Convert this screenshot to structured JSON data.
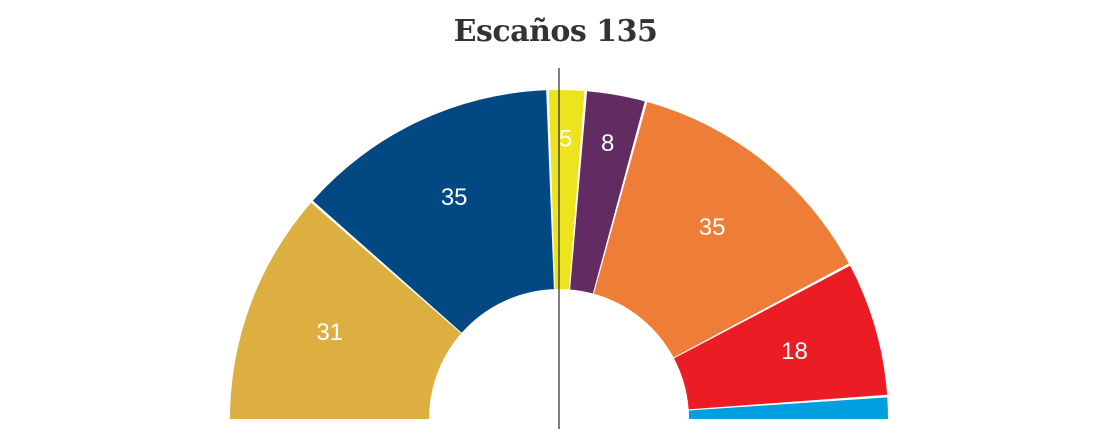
{
  "chart_data": {
    "type": "pie",
    "title": "Escaños 135",
    "total": 135,
    "series": [
      {
        "value": 31,
        "label": "31",
        "color": "#DDAE40"
      },
      {
        "value": 35,
        "label": "35",
        "color": "#024883"
      },
      {
        "value": 5,
        "label": "5",
        "color": "#EEE41E"
      },
      {
        "value": 8,
        "label": "8",
        "color": "#622C62"
      },
      {
        "value": 35,
        "label": "35",
        "color": "#EE7D38"
      },
      {
        "value": 18,
        "label": "18",
        "color": "#EC1C24"
      },
      {
        "value": 3,
        "label": "",
        "color": "#009FE0"
      }
    ],
    "majority_line": true
  }
}
